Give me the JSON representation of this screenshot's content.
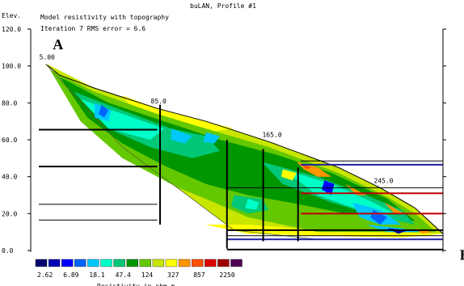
{
  "chart_data": {
    "type": "heatmap",
    "title": "buLAN, Profile #1",
    "subtitle_lines": [
      "Model resistivity with topography",
      "Iteration 7 RMS error = 6.6"
    ],
    "ylabel": "Elev.",
    "y_ticks": [
      "120.0",
      "100.0",
      "80.0",
      "60.0",
      "40.0",
      "20.0",
      "0.0"
    ],
    "ylim": [
      0,
      120
    ],
    "xlim": [
      0,
      290
    ],
    "distance_labels": [
      {
        "text": "5.00",
        "x": 5
      },
      {
        "text": "85.0",
        "x": 85
      },
      {
        "text": "165.0",
        "x": 165
      },
      {
        "text": "245.0",
        "x": 245
      }
    ],
    "surface": [
      [
        5,
        101
      ],
      [
        15,
        95
      ],
      [
        40,
        88
      ],
      [
        85,
        77
      ],
      [
        120,
        70
      ],
      [
        165,
        59
      ],
      [
        190,
        52
      ],
      [
        215,
        45
      ],
      [
        245,
        34
      ],
      [
        270,
        23
      ],
      [
        290,
        9
      ]
    ],
    "bottom": [
      [
        5,
        101
      ],
      [
        60,
        56
      ],
      [
        110,
        28
      ],
      [
        140,
        11
      ],
      [
        200,
        6
      ],
      [
        290,
        6
      ]
    ],
    "point_labels": [
      {
        "text": "A",
        "x": 10,
        "y": 109
      },
      {
        "text": "B",
        "x": 302,
        "y": -5
      }
    ],
    "legend": {
      "values": [
        "2.62",
        "6.89",
        "18.1",
        "47.4",
        "124",
        "327",
        "857",
        "2250"
      ],
      "colors": [
        "#00006e",
        "#0000b4",
        "#0000ff",
        "#0064ff",
        "#00c8ff",
        "#00ffc8",
        "#00c878",
        "#009600",
        "#64c800",
        "#c8e600",
        "#ffff00",
        "#ff9600",
        "#ff5000",
        "#dc0000",
        "#a00000",
        "#500050"
      ],
      "caption": "Resistivity in ohm.m"
    },
    "interpretation_lines": [
      {
        "y": 65.5,
        "x": [
          0,
          85
        ],
        "color": "#000000",
        "width": 2
      },
      {
        "y": 45.5,
        "x": [
          0,
          85
        ],
        "color": "#000000",
        "width": 2
      },
      {
        "y": 25,
        "x": [
          0,
          85
        ],
        "color": "#000000",
        "width": 1
      },
      {
        "y": 16.5,
        "x": [
          0,
          85
        ],
        "color": "#000000",
        "width": 1
      },
      {
        "y": 48.5,
        "x": [
          188,
          290
        ],
        "color": "#000000",
        "width": 1
      },
      {
        "y": 46.5,
        "x": [
          188,
          290
        ],
        "color": "#2020a0",
        "width": 2
      },
      {
        "y": 34,
        "x": [
          135,
          290
        ],
        "color": "#000000",
        "width": 1
      },
      {
        "y": 31,
        "x": [
          188,
          290
        ],
        "color": "#c00000",
        "width": 2
      },
      {
        "y": 20,
        "x": [
          188,
          290
        ],
        "color": "#c00000",
        "width": 2
      },
      {
        "y": 11,
        "x": [
          135,
          290
        ],
        "color": "#000000",
        "width": 2
      },
      {
        "y": 8,
        "x": [
          135,
          290
        ],
        "color": "#000000",
        "width": 1
      },
      {
        "y": 6,
        "x": [
          135,
          290
        ],
        "color": "#2020a0",
        "width": 2
      },
      {
        "y": 0.5,
        "x": [
          135,
          290
        ],
        "color": "#000000",
        "width": 2
      }
    ],
    "boundaries": [
      {
        "x": 87,
        "y": [
          14,
          79
        ]
      },
      {
        "x": 135,
        "y": [
          1,
          60
        ]
      },
      {
        "x": 161,
        "y": [
          5,
          55
        ]
      },
      {
        "x": 186,
        "y": [
          5,
          45
        ]
      }
    ],
    "color_zones": [
      {
        "color": "#c8e600",
        "pts": [
          [
            6,
            101
          ],
          [
            40,
            88
          ],
          [
            85,
            77
          ],
          [
            120,
            70
          ],
          [
            165,
            59
          ],
          [
            190,
            52
          ],
          [
            215,
            45
          ],
          [
            245,
            34
          ],
          [
            270,
            23
          ],
          [
            290,
            9
          ],
          [
            140,
            11
          ],
          [
            110,
            28
          ],
          [
            60,
            56
          ]
        ]
      },
      {
        "color": "#ffff00",
        "pts": [
          [
            60,
            84
          ],
          [
            85,
            77
          ],
          [
            120,
            70
          ],
          [
            140,
            66
          ],
          [
            120,
            64
          ],
          [
            90,
            70
          ],
          [
            70,
            74
          ]
        ]
      },
      {
        "color": "#ffff00",
        "pts": [
          [
            120,
            14
          ],
          [
            150,
            9
          ],
          [
            200,
            8
          ],
          [
            260,
            7
          ],
          [
            290,
            9
          ],
          [
            200,
            11
          ],
          [
            150,
            14
          ]
        ]
      },
      {
        "color": "#64c800",
        "pts": [
          [
            8,
            98
          ],
          [
            40,
            86
          ],
          [
            85,
            74
          ],
          [
            120,
            66
          ],
          [
            165,
            56
          ],
          [
            215,
            42
          ],
          [
            250,
            29
          ],
          [
            270,
            20
          ],
          [
            285,
            10
          ],
          [
            200,
            10
          ],
          [
            150,
            18
          ],
          [
            120,
            28
          ],
          [
            100,
            34
          ],
          [
            60,
            50
          ],
          [
            30,
            70
          ]
        ]
      },
      {
        "color": "#009600",
        "pts": [
          [
            15,
            94
          ],
          [
            50,
            80
          ],
          [
            90,
            70
          ],
          [
            130,
            60
          ],
          [
            170,
            52
          ],
          [
            210,
            42
          ],
          [
            250,
            28
          ],
          [
            270,
            16
          ],
          [
            220,
            20
          ],
          [
            180,
            26
          ],
          [
            150,
            30
          ],
          [
            120,
            36
          ],
          [
            90,
            46
          ],
          [
            60,
            58
          ],
          [
            35,
            72
          ]
        ]
      },
      {
        "color": "#00c878",
        "pts": [
          [
            25,
            86
          ],
          [
            60,
            76
          ],
          [
            95,
            66
          ],
          [
            120,
            62
          ],
          [
            130,
            54
          ],
          [
            110,
            50
          ],
          [
            80,
            56
          ],
          [
            50,
            66
          ]
        ]
      },
      {
        "color": "#00ffc8",
        "pts": [
          [
            30,
            82
          ],
          [
            60,
            74
          ],
          [
            90,
            66
          ],
          [
            80,
            60
          ],
          [
            50,
            66
          ]
        ]
      },
      {
        "color": "#00c878",
        "pts": [
          [
            160,
            48
          ],
          [
            200,
            40
          ],
          [
            235,
            30
          ],
          [
            260,
            22
          ],
          [
            270,
            14
          ],
          [
            245,
            18
          ],
          [
            210,
            26
          ],
          [
            175,
            36
          ]
        ]
      },
      {
        "color": "#00ffc8",
        "pts": [
          [
            175,
            44
          ],
          [
            210,
            36
          ],
          [
            240,
            26
          ],
          [
            255,
            20
          ],
          [
            230,
            22
          ],
          [
            200,
            30
          ]
        ]
      },
      {
        "color": "#00c8ff",
        "pts": [
          [
            225,
            26
          ],
          [
            245,
            22
          ],
          [
            260,
            14
          ],
          [
            245,
            14
          ],
          [
            230,
            18
          ]
        ]
      },
      {
        "color": "#0064ff",
        "pts": [
          [
            240,
            22
          ],
          [
            250,
            18
          ],
          [
            245,
            14
          ],
          [
            238,
            18
          ]
        ]
      },
      {
        "color": "#0000ff",
        "pts": [
          [
            205,
            38
          ],
          [
            212,
            36
          ],
          [
            210,
            30
          ],
          [
            203,
            33
          ]
        ]
      },
      {
        "color": "#00c8ff",
        "pts": [
          [
            235,
            14
          ],
          [
            260,
            12
          ],
          [
            275,
            10
          ],
          [
            250,
            10
          ]
        ]
      },
      {
        "color": "#0000b4",
        "pts": [
          [
            250,
            12
          ],
          [
            265,
            11
          ],
          [
            258,
            9
          ]
        ]
      },
      {
        "color": "#00c8ff",
        "pts": [
          [
            40,
            80
          ],
          [
            52,
            76
          ],
          [
            50,
            70
          ],
          [
            40,
            72
          ]
        ]
      },
      {
        "color": "#0064ff",
        "pts": [
          [
            45,
            79
          ],
          [
            50,
            76
          ],
          [
            47,
            72
          ],
          [
            43,
            74
          ]
        ]
      },
      {
        "color": "#00c8ff",
        "pts": [
          [
            95,
            66
          ],
          [
            110,
            62
          ],
          [
            105,
            58
          ],
          [
            95,
            60
          ]
        ]
      },
      {
        "color": "#00c8ff",
        "pts": [
          [
            120,
            64
          ],
          [
            130,
            62
          ],
          [
            126,
            58
          ],
          [
            118,
            59
          ]
        ]
      },
      {
        "color": "#ff9600",
        "pts": [
          [
            185,
            48
          ],
          [
            200,
            45
          ],
          [
            210,
            40
          ],
          [
            200,
            40
          ],
          [
            190,
            44
          ]
        ]
      },
      {
        "color": "#ff5000",
        "pts": [
          [
            188,
            47
          ],
          [
            196,
            45
          ],
          [
            192,
            44
          ]
        ]
      },
      {
        "color": "#ff9600",
        "pts": [
          [
            220,
            36
          ],
          [
            235,
            30
          ],
          [
            228,
            30
          ]
        ]
      },
      {
        "color": "#ff9600",
        "pts": [
          [
            248,
            26
          ],
          [
            262,
            20
          ],
          [
            255,
            20
          ]
        ]
      },
      {
        "color": "#ff9600",
        "pts": [
          [
            270,
            12
          ],
          [
            282,
            10
          ],
          [
            275,
            9
          ]
        ]
      },
      {
        "color": "#ffff00",
        "pts": [
          [
            175,
            44
          ],
          [
            185,
            42
          ],
          [
            182,
            38
          ],
          [
            174,
            40
          ]
        ]
      },
      {
        "color": "#00c878",
        "pts": [
          [
            140,
            30
          ],
          [
            160,
            28
          ],
          [
            165,
            22
          ],
          [
            150,
            20
          ],
          [
            138,
            24
          ]
        ]
      },
      {
        "color": "#00ffc8",
        "pts": [
          [
            150,
            28
          ],
          [
            158,
            26
          ],
          [
            156,
            22
          ],
          [
            148,
            23
          ]
        ]
      }
    ]
  }
}
